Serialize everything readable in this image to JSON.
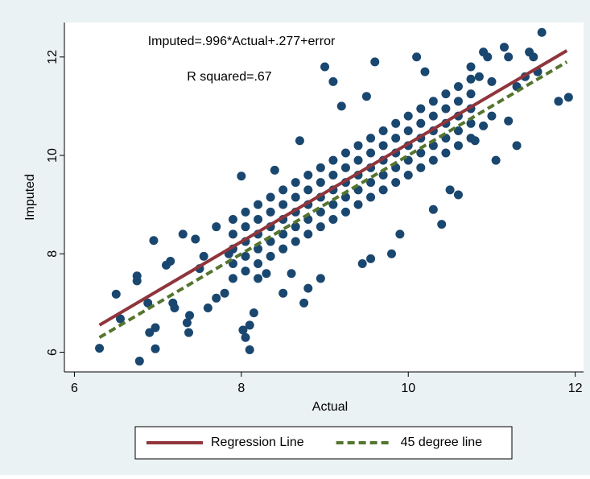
{
  "chart_data": {
    "type": "scatter",
    "xlabel": "Actual",
    "ylabel": "Imputed",
    "annotations": [
      "Imputed=.996*Actual+.277+error",
      "R squared=.67"
    ],
    "xlim": [
      5.88,
      12.1
    ],
    "ylim": [
      5.6,
      12.7
    ],
    "xticks": [
      6,
      8,
      10,
      12
    ],
    "yticks": [
      6,
      8,
      10,
      12
    ],
    "legend": "bottom",
    "series": [
      {
        "type": "scatter",
        "color": "#1a476f",
        "x": [
          6.3,
          6.5,
          6.55,
          6.75,
          6.75,
          6.78,
          6.9,
          6.97,
          6.97,
          6.95,
          6.88,
          7.1,
          7.15,
          7.2,
          7.18,
          7.3,
          7.35,
          7.37,
          7.38,
          7.45,
          7.5,
          7.55,
          7.6,
          7.7,
          7.8,
          7.7,
          7.85,
          8.0,
          8.02,
          8.05,
          8.1,
          8.1,
          8.15,
          8.2,
          8.3,
          8.4,
          8.5,
          8.6,
          8.7,
          8.75,
          8.8,
          8.95,
          9.0,
          9.1,
          9.2,
          9.5,
          9.6,
          9.45,
          9.55,
          9.8,
          9.9,
          10.1,
          10.2,
          10.3,
          10.4,
          10.5,
          10.6,
          10.75,
          10.85,
          10.9,
          10.95,
          11.0,
          11.05,
          11.2,
          11.3,
          11.4,
          11.45,
          11.5,
          11.55,
          11.6,
          11.2,
          11.15,
          11.8,
          11.92,
          11.3,
          11.0,
          10.9,
          10.8,
          7.9,
          7.9,
          7.9,
          7.9,
          7.9,
          8.05,
          8.05,
          8.05,
          8.05,
          8.05,
          8.2,
          8.2,
          8.2,
          8.2,
          8.2,
          8.35,
          8.35,
          8.35,
          8.35,
          8.35,
          8.5,
          8.5,
          8.5,
          8.5,
          8.5,
          8.65,
          8.65,
          8.65,
          8.65,
          8.65,
          8.8,
          8.8,
          8.8,
          8.8,
          8.8,
          8.95,
          8.95,
          8.95,
          8.95,
          8.95,
          9.1,
          9.1,
          9.1,
          9.1,
          9.1,
          9.25,
          9.25,
          9.25,
          9.25,
          9.25,
          9.4,
          9.4,
          9.4,
          9.4,
          9.4,
          9.55,
          9.55,
          9.55,
          9.55,
          9.55,
          9.7,
          9.7,
          9.7,
          9.7,
          9.7,
          9.85,
          9.85,
          9.85,
          9.85,
          9.85,
          10.0,
          10.0,
          10.0,
          10.0,
          10.0,
          10.15,
          10.15,
          10.15,
          10.15,
          10.15,
          10.3,
          10.3,
          10.3,
          10.3,
          10.3,
          10.45,
          10.45,
          10.45,
          10.45,
          10.45,
          10.6,
          10.6,
          10.6,
          10.6,
          10.6,
          10.75,
          10.75,
          10.75,
          10.75,
          10.75
        ],
        "y": [
          6.08,
          7.18,
          6.68,
          7.55,
          7.45,
          5.82,
          6.4,
          6.07,
          6.5,
          8.27,
          7.0,
          7.77,
          7.85,
          6.9,
          7.0,
          8.4,
          6.6,
          6.4,
          6.75,
          8.3,
          7.7,
          7.95,
          6.9,
          7.1,
          7.2,
          8.55,
          8.0,
          9.58,
          6.45,
          6.3,
          6.05,
          6.55,
          6.8,
          7.5,
          7.6,
          9.7,
          7.2,
          7.6,
          10.3,
          7.0,
          7.3,
          7.5,
          11.8,
          11.5,
          11.0,
          11.2,
          11.9,
          7.8,
          7.9,
          8.0,
          8.4,
          12.0,
          11.7,
          8.9,
          8.6,
          9.3,
          9.2,
          11.8,
          11.6,
          12.1,
          12.0,
          11.5,
          9.9,
          10.7,
          11.4,
          11.6,
          12.1,
          12.0,
          11.7,
          12.5,
          12.0,
          12.2,
          11.1,
          11.18,
          10.2,
          10.8,
          10.6,
          10.3,
          7.5,
          7.8,
          8.1,
          8.4,
          8.7,
          7.65,
          7.95,
          8.25,
          8.55,
          8.85,
          7.8,
          8.1,
          8.4,
          8.7,
          9.0,
          7.95,
          8.25,
          8.55,
          8.85,
          9.15,
          8.1,
          8.4,
          8.7,
          9.0,
          9.3,
          8.25,
          8.55,
          8.85,
          9.15,
          9.45,
          8.4,
          8.7,
          9.0,
          9.3,
          9.6,
          8.55,
          8.85,
          9.15,
          9.45,
          9.75,
          8.7,
          9.0,
          9.3,
          9.6,
          9.9,
          8.85,
          9.15,
          9.45,
          9.75,
          10.05,
          9.0,
          9.3,
          9.6,
          9.9,
          10.2,
          9.15,
          9.45,
          9.75,
          10.05,
          10.35,
          9.3,
          9.6,
          9.9,
          10.2,
          10.5,
          9.45,
          9.75,
          10.05,
          10.35,
          10.65,
          9.6,
          9.9,
          10.2,
          10.5,
          10.8,
          9.75,
          10.05,
          10.35,
          10.65,
          10.95,
          9.9,
          10.2,
          10.5,
          10.8,
          11.1,
          10.05,
          10.35,
          10.65,
          10.95,
          11.25,
          10.2,
          10.5,
          10.8,
          11.1,
          11.4,
          10.35,
          10.65,
          10.95,
          11.25,
          11.55
        ]
      },
      {
        "type": "line",
        "name": "Regression Line",
        "color": "#90353b",
        "dashed": false,
        "x": [
          6.3,
          11.9
        ],
        "y": [
          6.552,
          12.13
        ]
      },
      {
        "type": "line",
        "name": "45 degree line",
        "color": "#55752f",
        "dashed": true,
        "x": [
          6.3,
          11.9
        ],
        "y": [
          6.3,
          11.9
        ]
      }
    ]
  }
}
